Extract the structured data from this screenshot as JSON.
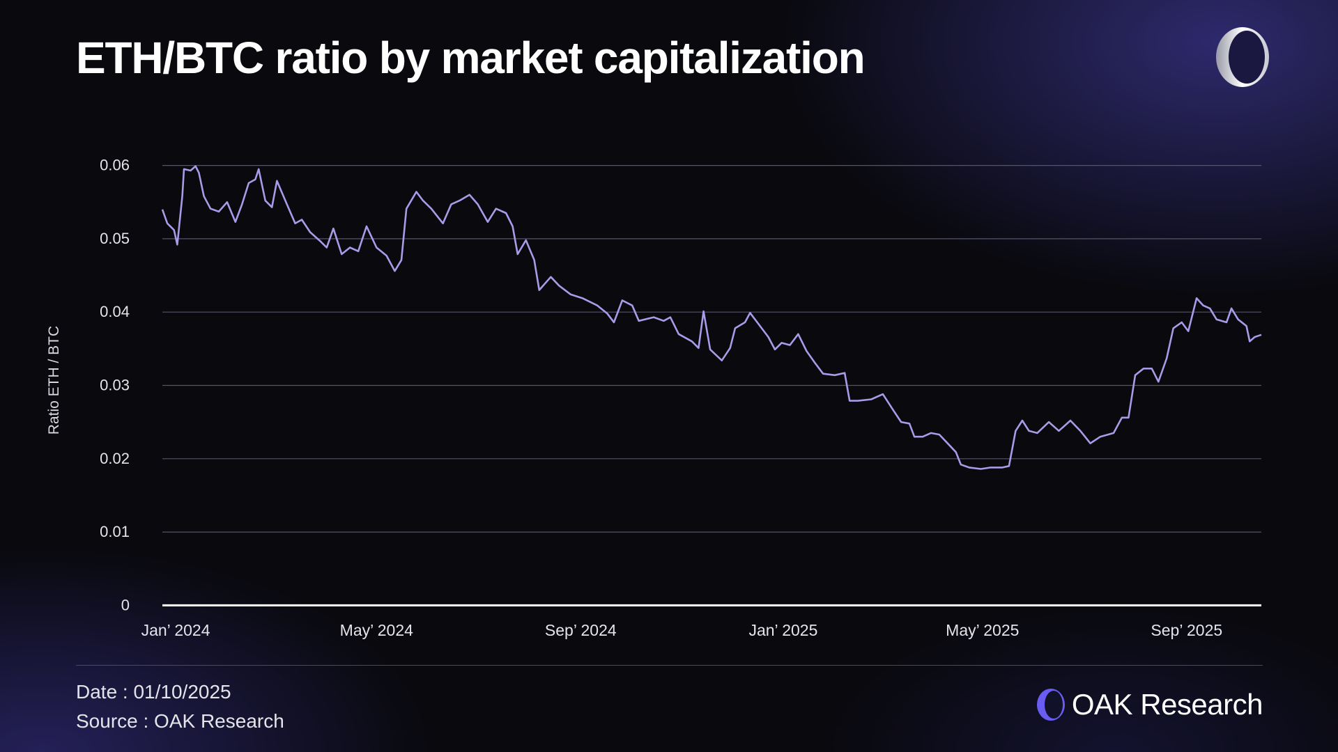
{
  "title": "ETH/BTC ratio by market capitalization",
  "footer": {
    "date": "Date : 01/10/2025",
    "source": "Source : OAK Research"
  },
  "brand": {
    "name_bold": "OAK",
    "name_rest": "Research"
  },
  "colors": {
    "line": "#a99be8",
    "grid": "#55556a",
    "axis": "#ffffff",
    "accent": "#6a5cf0"
  },
  "chart_data": {
    "type": "line",
    "title": "ETH/BTC ratio by market capitalization",
    "xlabel": "",
    "ylabel": "Ratio ETH / BTC",
    "xlim": [
      "2023-12-24",
      "2025-10-16"
    ],
    "ylim": [
      0,
      0.06
    ],
    "yticks": [
      0,
      0.01,
      0.02,
      0.03,
      0.04,
      0.05,
      0.06
    ],
    "ytick_labels": [
      "0",
      "0.01",
      "0.02",
      "0.03",
      "0.04",
      "0.05",
      "0.06"
    ],
    "xticks": [
      "2024-01-01",
      "2024-05-01",
      "2024-09-01",
      "2025-01-01",
      "2025-05-01",
      "2025-09-01"
    ],
    "xtick_labels": [
      "Jan’ 2024",
      "May’ 2024",
      "Sep’ 2024",
      "Jan’ 2025",
      "May’ 2025",
      "Sep’ 2025"
    ],
    "grid": true,
    "legend": "none",
    "x": [
      "2023-12-24",
      "2023-12-27",
      "2023-12-31",
      "2024-01-02",
      "2024-01-05",
      "2024-01-06",
      "2024-01-10",
      "2024-01-13",
      "2024-01-15",
      "2024-01-18",
      "2024-01-22",
      "2024-01-27",
      "2024-02-01",
      "2024-02-06",
      "2024-02-10",
      "2024-02-14",
      "2024-02-18",
      "2024-02-20",
      "2024-02-24",
      "2024-02-28",
      "2024-03-02",
      "2024-03-08",
      "2024-03-13",
      "2024-03-17",
      "2024-03-22",
      "2024-03-28",
      "2024-04-01",
      "2024-04-05",
      "2024-04-10",
      "2024-04-15",
      "2024-04-20",
      "2024-04-25",
      "2024-05-01",
      "2024-05-07",
      "2024-05-12",
      "2024-05-16",
      "2024-05-19",
      "2024-05-25",
      "2024-05-29",
      "2024-06-03",
      "2024-06-10",
      "2024-06-15",
      "2024-06-20",
      "2024-06-26",
      "2024-07-01",
      "2024-07-07",
      "2024-07-12",
      "2024-07-18",
      "2024-07-22",
      "2024-07-25",
      "2024-07-30",
      "2024-08-04",
      "2024-08-07",
      "2024-08-14",
      "2024-08-19",
      "2024-08-26",
      "2024-09-02",
      "2024-09-11",
      "2024-09-17",
      "2024-09-21",
      "2024-09-26",
      "2024-10-02",
      "2024-10-06",
      "2024-10-15",
      "2024-10-21",
      "2024-10-25",
      "2024-10-30",
      "2024-11-07",
      "2024-11-11",
      "2024-11-14",
      "2024-11-18",
      "2024-11-25",
      "2024-11-30",
      "2024-12-03",
      "2024-12-09",
      "2024-12-12",
      "2024-12-17",
      "2024-12-23",
      "2024-12-27",
      "2024-12-31",
      "2025-01-05",
      "2025-01-10",
      "2025-01-15",
      "2025-01-20",
      "2025-01-25",
      "2025-02-01",
      "2025-02-07",
      "2025-02-10",
      "2025-02-15",
      "2025-02-23",
      "2025-03-02",
      "2025-03-08",
      "2025-03-13",
      "2025-03-18",
      "2025-03-21",
      "2025-03-26",
      "2025-03-31",
      "2025-04-05",
      "2025-04-10",
      "2025-04-15",
      "2025-04-18",
      "2025-04-23",
      "2025-04-30",
      "2025-05-06",
      "2025-05-13",
      "2025-05-17",
      "2025-05-21",
      "2025-05-25",
      "2025-05-29",
      "2025-06-03",
      "2025-06-10",
      "2025-06-16",
      "2025-06-23",
      "2025-06-29",
      "2025-07-05",
      "2025-07-11",
      "2025-07-19",
      "2025-07-24",
      "2025-07-28",
      "2025-08-01",
      "2025-08-06",
      "2025-08-11",
      "2025-08-15",
      "2025-08-20",
      "2025-08-24",
      "2025-08-29",
      "2025-09-02",
      "2025-09-07",
      "2025-09-11",
      "2025-09-15",
      "2025-09-19",
      "2025-09-25",
      "2025-09-28",
      "2025-10-02",
      "2025-10-07",
      "2025-10-09",
      "2025-10-12",
      "2025-10-16"
    ],
    "values": [
      0.054,
      0.0521,
      0.0512,
      0.0492,
      0.0558,
      0.0595,
      0.0593,
      0.0599,
      0.059,
      0.0558,
      0.0541,
      0.0537,
      0.055,
      0.0523,
      0.0547,
      0.0576,
      0.0581,
      0.0595,
      0.0552,
      0.0543,
      0.0579,
      0.0547,
      0.0521,
      0.0526,
      0.0509,
      0.0497,
      0.0488,
      0.0514,
      0.0479,
      0.0488,
      0.0483,
      0.0517,
      0.0488,
      0.0477,
      0.0456,
      0.0471,
      0.0541,
      0.0564,
      0.0552,
      0.0541,
      0.0521,
      0.0547,
      0.0552,
      0.056,
      0.0547,
      0.0523,
      0.0541,
      0.0535,
      0.0517,
      0.0479,
      0.0498,
      0.0471,
      0.043,
      0.0448,
      0.0436,
      0.0424,
      0.0419,
      0.0409,
      0.0398,
      0.0386,
      0.0416,
      0.0409,
      0.0388,
      0.0393,
      0.0388,
      0.0393,
      0.037,
      0.036,
      0.0351,
      0.0401,
      0.0349,
      0.0334,
      0.0351,
      0.0378,
      0.0386,
      0.0399,
      0.0384,
      0.0366,
      0.0349,
      0.0358,
      0.0355,
      0.037,
      0.0347,
      0.0331,
      0.0316,
      0.0314,
      0.0317,
      0.0279,
      0.0279,
      0.0281,
      0.0288,
      0.0267,
      0.025,
      0.0248,
      0.023,
      0.023,
      0.0235,
      0.0233,
      0.0221,
      0.0209,
      0.0192,
      0.0188,
      0.0186,
      0.0188,
      0.0188,
      0.019,
      0.0238,
      0.0252,
      0.0238,
      0.0235,
      0.025,
      0.0238,
      0.0252,
      0.0238,
      0.0221,
      0.023,
      0.0235,
      0.0256,
      0.0256,
      0.0314,
      0.0323,
      0.0323,
      0.0305,
      0.0337,
      0.0378,
      0.0386,
      0.0374,
      0.0419,
      0.0409,
      0.0405,
      0.039,
      0.0386,
      0.0405,
      0.039,
      0.0381,
      0.036,
      0.0366,
      0.0369
    ]
  }
}
